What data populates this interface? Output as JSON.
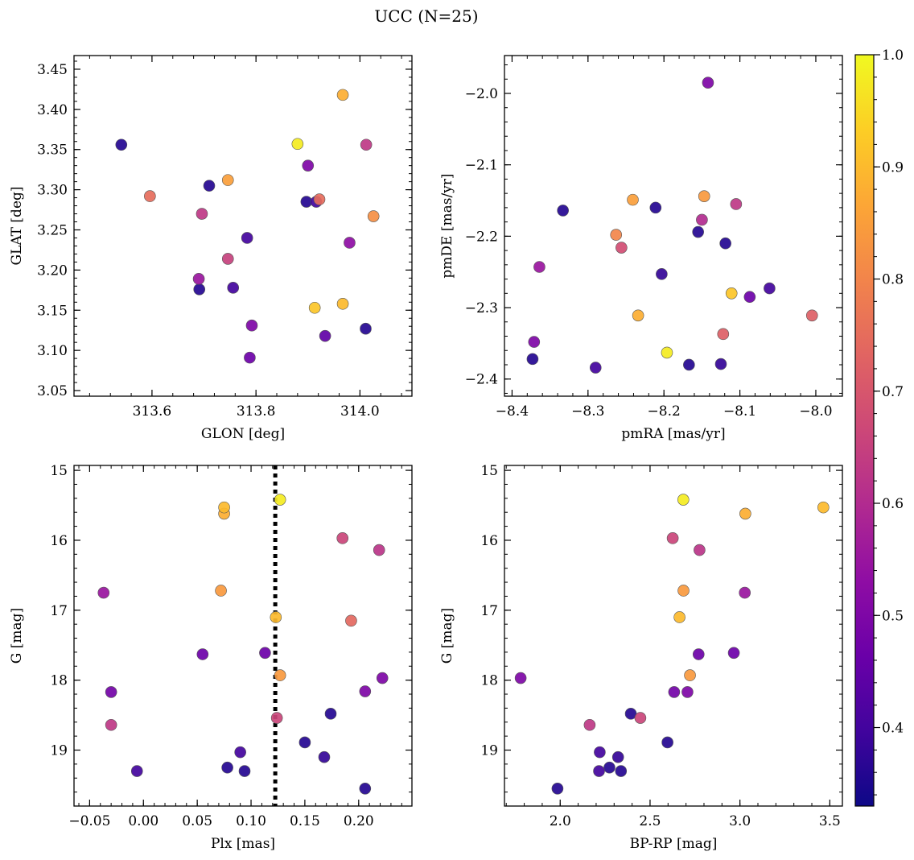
{
  "figure": {
    "title": "UCC (N=25)"
  },
  "colorbar": {
    "vmin": 0.33,
    "vmax": 1.0,
    "ticks": [
      0.4,
      0.5,
      0.6,
      0.7,
      0.8,
      0.9,
      1.0
    ],
    "tick_labels": [
      "0.4",
      "0.5",
      "0.6",
      "0.7",
      "0.8",
      "0.9",
      "1.0"
    ],
    "colormap": "plasma"
  },
  "chart_data": [
    {
      "type": "scatter",
      "xlabel": "GLON [deg]",
      "ylabel": "GLAT [deg]",
      "xlim": [
        313.45,
        314.1
      ],
      "ylim": [
        3.043,
        3.467
      ],
      "x_ticks": [
        313.6,
        313.8,
        314.0
      ],
      "x_tick_labels": [
        "313.6",
        "313.8",
        "314.0"
      ],
      "y_ticks": [
        3.05,
        3.1,
        3.15,
        3.2,
        3.25,
        3.3,
        3.35,
        3.4,
        3.45
      ],
      "y_tick_labels": [
        "3.05",
        "3.10",
        "3.15",
        "3.20",
        "3.25",
        "3.30",
        "3.35",
        "3.40",
        "3.45"
      ],
      "y_inverted": false,
      "points": [
        {
          "x": 313.541,
          "y": 3.356,
          "c": 0.36
        },
        {
          "x": 313.596,
          "y": 3.292,
          "c": 0.75
        },
        {
          "x": 313.696,
          "y": 3.27,
          "c": 0.63
        },
        {
          "x": 313.71,
          "y": 3.305,
          "c": 0.36
        },
        {
          "x": 313.746,
          "y": 3.312,
          "c": 0.85
        },
        {
          "x": 313.746,
          "y": 3.214,
          "c": 0.65
        },
        {
          "x": 313.69,
          "y": 3.189,
          "c": 0.55
        },
        {
          "x": 313.691,
          "y": 3.176,
          "c": 0.36
        },
        {
          "x": 313.756,
          "y": 3.178,
          "c": 0.4
        },
        {
          "x": 313.783,
          "y": 3.24,
          "c": 0.4
        },
        {
          "x": 313.792,
          "y": 3.131,
          "c": 0.5
        },
        {
          "x": 313.788,
          "y": 3.091,
          "c": 0.47
        },
        {
          "x": 313.88,
          "y": 3.357,
          "c": 0.98
        },
        {
          "x": 313.9,
          "y": 3.33,
          "c": 0.5
        },
        {
          "x": 313.897,
          "y": 3.285,
          "c": 0.36
        },
        {
          "x": 313.916,
          "y": 3.285,
          "c": 0.4
        },
        {
          "x": 313.922,
          "y": 3.288,
          "c": 0.75
        },
        {
          "x": 313.913,
          "y": 3.153,
          "c": 0.92
        },
        {
          "x": 313.933,
          "y": 3.118,
          "c": 0.45
        },
        {
          "x": 313.967,
          "y": 3.418,
          "c": 0.88
        },
        {
          "x": 313.967,
          "y": 3.158,
          "c": 0.9
        },
        {
          "x": 313.98,
          "y": 3.234,
          "c": 0.53
        },
        {
          "x": 314.012,
          "y": 3.356,
          "c": 0.63
        },
        {
          "x": 314.011,
          "y": 3.127,
          "c": 0.36
        },
        {
          "x": 314.026,
          "y": 3.267,
          "c": 0.82
        }
      ]
    },
    {
      "type": "scatter",
      "xlabel": "pmRA [mas/yr]",
      "ylabel": "pmDE [mas/yr]",
      "xlim": [
        -8.41,
        -7.965
      ],
      "ylim": [
        -2.424,
        -1.947
      ],
      "x_ticks": [
        -8.4,
        -8.3,
        -8.2,
        -8.1,
        -8.0
      ],
      "x_tick_labels": [
        "−8.4",
        "−8.3",
        "−8.2",
        "−8.1",
        "−8.0"
      ],
      "y_ticks": [
        -2.4,
        -2.3,
        -2.2,
        -2.1,
        -2.0
      ],
      "y_tick_labels": [
        "−2.4",
        "−2.3",
        "−2.2",
        "−2.1",
        "−2.0"
      ],
      "y_inverted": false,
      "points": [
        {
          "x": -8.142,
          "y": -1.985,
          "c": 0.5
        },
        {
          "x": -8.333,
          "y": -2.164,
          "c": 0.36
        },
        {
          "x": -8.241,
          "y": -2.149,
          "c": 0.85
        },
        {
          "x": -8.211,
          "y": -2.16,
          "c": 0.36
        },
        {
          "x": -8.147,
          "y": -2.144,
          "c": 0.84
        },
        {
          "x": -8.105,
          "y": -2.155,
          "c": 0.63
        },
        {
          "x": -8.15,
          "y": -2.177,
          "c": 0.6
        },
        {
          "x": -8.263,
          "y": -2.198,
          "c": 0.8
        },
        {
          "x": -8.256,
          "y": -2.216,
          "c": 0.68
        },
        {
          "x": -8.155,
          "y": -2.194,
          "c": 0.36
        },
        {
          "x": -8.119,
          "y": -2.21,
          "c": 0.36
        },
        {
          "x": -8.364,
          "y": -2.243,
          "c": 0.55
        },
        {
          "x": -8.203,
          "y": -2.253,
          "c": 0.38
        },
        {
          "x": -8.111,
          "y": -2.28,
          "c": 0.92
        },
        {
          "x": -8.087,
          "y": -2.285,
          "c": 0.47
        },
        {
          "x": -8.061,
          "y": -2.273,
          "c": 0.4
        },
        {
          "x": -8.234,
          "y": -2.311,
          "c": 0.88
        },
        {
          "x": -8.005,
          "y": -2.311,
          "c": 0.72
        },
        {
          "x": -8.122,
          "y": -2.337,
          "c": 0.72
        },
        {
          "x": -8.371,
          "y": -2.348,
          "c": 0.5
        },
        {
          "x": -8.196,
          "y": -2.363,
          "c": 0.98
        },
        {
          "x": -8.373,
          "y": -2.372,
          "c": 0.36
        },
        {
          "x": -8.167,
          "y": -2.38,
          "c": 0.36
        },
        {
          "x": -8.125,
          "y": -2.379,
          "c": 0.38
        },
        {
          "x": -8.29,
          "y": -2.384,
          "c": 0.4
        }
      ]
    },
    {
      "type": "scatter",
      "xlabel": "Plx [mas]",
      "ylabel": "G [mag]",
      "xlim": [
        -0.0645,
        0.2495
      ],
      "ylim": [
        19.8,
        14.93
      ],
      "x_ticks": [
        -0.05,
        0.0,
        0.05,
        0.1,
        0.15,
        0.2
      ],
      "x_tick_labels": [
        "−0.05",
        "0.00",
        "0.05",
        "0.10",
        "0.15",
        "0.20"
      ],
      "y_ticks": [
        15,
        16,
        17,
        18,
        19
      ],
      "y_tick_labels": [
        "15",
        "16",
        "17",
        "18",
        "19"
      ],
      "y_inverted": true,
      "vline_x": 0.1225,
      "points": [
        {
          "x": 0.127,
          "y": 15.42,
          "c": 0.98
        },
        {
          "x": 0.075,
          "y": 15.53,
          "c": 0.9
        },
        {
          "x": 0.075,
          "y": 15.62,
          "c": 0.88
        },
        {
          "x": 0.185,
          "y": 15.97,
          "c": 0.66
        },
        {
          "x": 0.219,
          "y": 16.14,
          "c": 0.62
        },
        {
          "x": -0.037,
          "y": 16.75,
          "c": 0.55
        },
        {
          "x": 0.072,
          "y": 16.72,
          "c": 0.84
        },
        {
          "x": 0.123,
          "y": 17.1,
          "c": 0.9
        },
        {
          "x": 0.193,
          "y": 17.15,
          "c": 0.74
        },
        {
          "x": 0.055,
          "y": 17.63,
          "c": 0.47
        },
        {
          "x": 0.113,
          "y": 17.61,
          "c": 0.47
        },
        {
          "x": 0.127,
          "y": 17.93,
          "c": 0.84
        },
        {
          "x": 0.222,
          "y": 17.97,
          "c": 0.5
        },
        {
          "x": -0.03,
          "y": 18.17,
          "c": 0.48
        },
        {
          "x": 0.206,
          "y": 18.16,
          "c": 0.5
        },
        {
          "x": 0.174,
          "y": 18.48,
          "c": 0.36
        },
        {
          "x": 0.124,
          "y": 18.54,
          "c": 0.66
        },
        {
          "x": -0.03,
          "y": 18.64,
          "c": 0.63
        },
        {
          "x": 0.15,
          "y": 18.89,
          "c": 0.36
        },
        {
          "x": 0.09,
          "y": 19.03,
          "c": 0.4
        },
        {
          "x": 0.168,
          "y": 19.1,
          "c": 0.38
        },
        {
          "x": 0.078,
          "y": 19.25,
          "c": 0.36
        },
        {
          "x": -0.006,
          "y": 19.3,
          "c": 0.4
        },
        {
          "x": 0.094,
          "y": 19.3,
          "c": 0.36
        },
        {
          "x": 0.206,
          "y": 19.55,
          "c": 0.36
        }
      ]
    },
    {
      "type": "scatter",
      "xlabel": "BP-RP [mag]",
      "ylabel": "G [mag]",
      "xlim": [
        1.69,
        3.57
      ],
      "ylim": [
        19.8,
        14.93
      ],
      "x_ticks": [
        2.0,
        2.5,
        3.0,
        3.5
      ],
      "x_tick_labels": [
        "2.0",
        "2.5",
        "3.0",
        "3.5"
      ],
      "y_ticks": [
        15,
        16,
        17,
        18,
        19
      ],
      "y_tick_labels": [
        "15",
        "16",
        "17",
        "18",
        "19"
      ],
      "y_inverted": true,
      "points": [
        {
          "x": 2.685,
          "y": 15.42,
          "c": 0.98
        },
        {
          "x": 3.464,
          "y": 15.53,
          "c": 0.9
        },
        {
          "x": 3.03,
          "y": 15.62,
          "c": 0.88
        },
        {
          "x": 2.626,
          "y": 15.97,
          "c": 0.66
        },
        {
          "x": 2.775,
          "y": 16.14,
          "c": 0.62
        },
        {
          "x": 3.027,
          "y": 16.75,
          "c": 0.55
        },
        {
          "x": 2.686,
          "y": 16.72,
          "c": 0.84
        },
        {
          "x": 2.664,
          "y": 17.1,
          "c": 0.9
        },
        {
          "x": 2.77,
          "y": 17.63,
          "c": 0.47
        },
        {
          "x": 2.966,
          "y": 17.61,
          "c": 0.47
        },
        {
          "x": 2.722,
          "y": 17.93,
          "c": 0.84
        },
        {
          "x": 1.78,
          "y": 17.97,
          "c": 0.5
        },
        {
          "x": 2.634,
          "y": 18.17,
          "c": 0.48
        },
        {
          "x": 2.708,
          "y": 18.17,
          "c": 0.5
        },
        {
          "x": 2.393,
          "y": 18.48,
          "c": 0.36
        },
        {
          "x": 2.446,
          "y": 18.54,
          "c": 0.66
        },
        {
          "x": 2.164,
          "y": 18.64,
          "c": 0.63
        },
        {
          "x": 2.597,
          "y": 18.89,
          "c": 0.36
        },
        {
          "x": 2.22,
          "y": 19.03,
          "c": 0.4
        },
        {
          "x": 2.322,
          "y": 19.1,
          "c": 0.38
        },
        {
          "x": 2.274,
          "y": 19.25,
          "c": 0.36
        },
        {
          "x": 2.216,
          "y": 19.3,
          "c": 0.4
        },
        {
          "x": 2.338,
          "y": 19.3,
          "c": 0.36
        },
        {
          "x": 1.985,
          "y": 19.55,
          "c": 0.36
        }
      ]
    }
  ]
}
